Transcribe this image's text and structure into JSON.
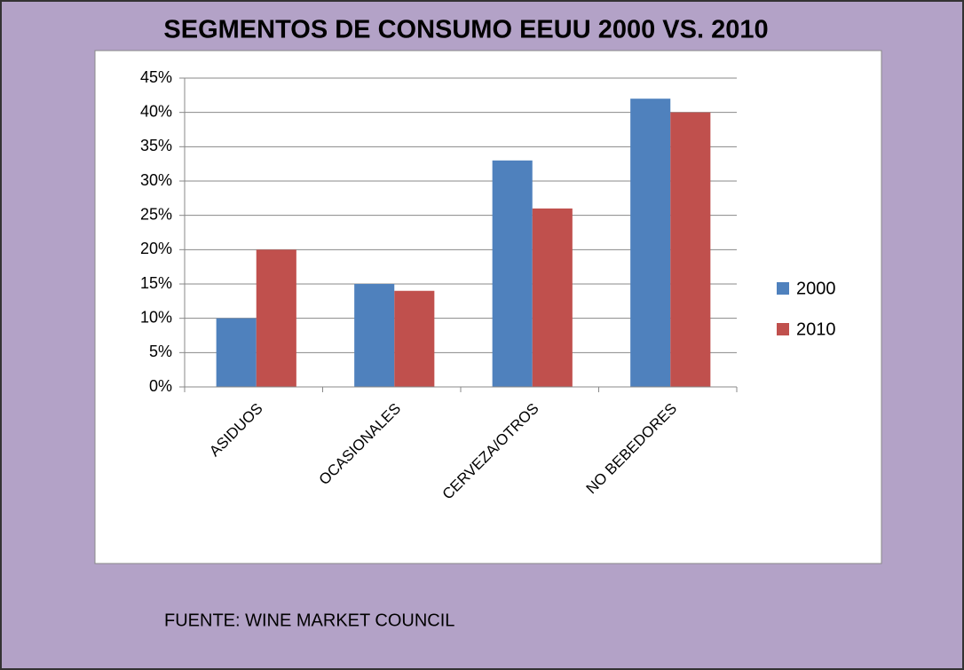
{
  "chart_data": {
    "type": "bar",
    "title": "SEGMENTOS DE CONSUMO EEUU 2000 VS. 2010",
    "categories": [
      "ASIDUOS",
      "OCASIONALES",
      "CERVEZA/OTROS",
      "NO BEBEDORES"
    ],
    "series": [
      {
        "name": "2000",
        "color": "#4f81bd",
        "values": [
          10,
          15,
          33,
          42
        ]
      },
      {
        "name": "2010",
        "color": "#c0504d",
        "values": [
          20,
          14,
          26,
          40
        ]
      }
    ],
    "ylim": [
      0,
      45
    ],
    "yticks": [
      {
        "value": 0,
        "label": "0%"
      },
      {
        "value": 5,
        "label": "5%"
      },
      {
        "value": 10,
        "label": "10%"
      },
      {
        "value": 15,
        "label": "15%"
      },
      {
        "value": 20,
        "label": "20%"
      },
      {
        "value": 25,
        "label": "25%"
      },
      {
        "value": 30,
        "label": "30%"
      },
      {
        "value": 35,
        "label": "35%"
      },
      {
        "value": 40,
        "label": "40%"
      },
      {
        "value": 45,
        "label": "45%"
      }
    ],
    "grid": true,
    "legend": "right",
    "annotation": "FUENTE: WINE MARKET COUNCIL"
  }
}
